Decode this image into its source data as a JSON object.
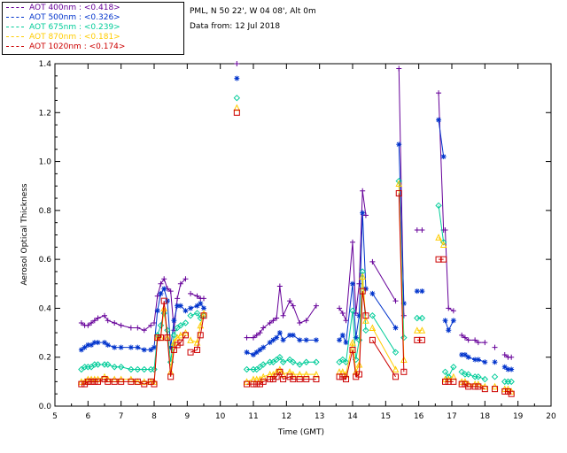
{
  "header": {
    "station": "PML, N 50 22', W 04 08', Alt 0m",
    "date": "Data from: 12 Jul 2018"
  },
  "chart_data": {
    "type": "scatter",
    "title": "",
    "xlabel": "Time (GMT)",
    "ylabel": "Aerosol Optical Thickness",
    "xlim": [
      5,
      20
    ],
    "ylim": [
      0,
      1.4
    ],
    "xticks": [
      5,
      6,
      7,
      8,
      9,
      10,
      11,
      12,
      13,
      14,
      15,
      16,
      17,
      18,
      19,
      20
    ],
    "yticks": [
      0.0,
      0.2,
      0.4,
      0.6,
      0.8,
      1.0,
      1.2,
      1.4
    ],
    "xtick_labels": [
      "5",
      "6",
      "7",
      "8",
      "9",
      "10",
      "11",
      "12",
      "13",
      "14",
      "15",
      "16",
      "17",
      "18",
      "19",
      "20"
    ],
    "ytick_labels": [
      "0.0",
      "0.2",
      "0.4",
      "0.6",
      "0.8",
      "1.0",
      "1.2",
      "1.4"
    ],
    "legend_position": "top-left",
    "segments": [
      [
        5.8,
        7.9
      ],
      [
        8.0,
        8.95
      ],
      [
        9.1,
        9.5
      ],
      [
        10.8,
        12.9
      ],
      [
        13.6,
        14.4
      ],
      [
        14.6,
        15.3
      ],
      [
        15.4,
        15.55
      ],
      [
        15.95,
        16.1
      ],
      [
        16.6,
        16.75
      ],
      [
        16.8,
        17.05
      ],
      [
        17.3,
        18.0
      ],
      [
        18.6,
        18.8
      ]
    ],
    "x": [
      5.8,
      5.9,
      6.0,
      6.1,
      6.2,
      6.3,
      6.5,
      6.6,
      6.8,
      7.0,
      7.3,
      7.5,
      7.7,
      7.9,
      8.0,
      8.1,
      8.2,
      8.3,
      8.4,
      8.5,
      8.6,
      8.7,
      8.8,
      8.95,
      9.1,
      9.3,
      9.4,
      9.5,
      10.5,
      10.8,
      11.0,
      11.1,
      11.2,
      11.3,
      11.5,
      11.6,
      11.7,
      11.8,
      11.9,
      12.1,
      12.2,
      12.4,
      12.6,
      12.9,
      13.6,
      13.7,
      13.8,
      14.0,
      14.1,
      14.2,
      14.3,
      14.4,
      14.6,
      15.3,
      15.4,
      15.55,
      15.95,
      16.1,
      16.6,
      16.75,
      16.8,
      16.9,
      17.05,
      17.3,
      17.4,
      17.5,
      17.7,
      17.8,
      18.0,
      18.3,
      18.6,
      18.7,
      18.8
    ],
    "series": [
      {
        "name": "AOT  400nm",
        "mean": "<0.418>",
        "color": "#660099",
        "marker": "plus",
        "values": [
          0.34,
          0.33,
          0.33,
          0.34,
          0.35,
          0.36,
          0.37,
          0.35,
          0.34,
          0.33,
          0.32,
          0.32,
          0.31,
          0.33,
          0.34,
          0.45,
          0.5,
          0.52,
          0.48,
          0.47,
          0.31,
          0.44,
          0.5,
          0.52,
          0.46,
          0.45,
          0.44,
          0.44,
          1.4,
          0.28,
          0.28,
          0.29,
          0.3,
          0.32,
          0.34,
          0.35,
          0.36,
          0.49,
          0.37,
          0.43,
          0.41,
          0.34,
          0.35,
          0.41,
          0.4,
          0.38,
          0.35,
          0.67,
          0.38,
          0.5,
          0.88,
          0.78,
          0.59,
          0.43,
          1.38,
          0.37,
          0.72,
          0.72,
          1.28,
          0.72,
          0.72,
          0.4,
          0.39,
          0.29,
          0.28,
          0.27,
          0.27,
          0.26,
          0.26,
          0.24,
          0.21,
          0.2,
          0.2
        ]
      },
      {
        "name": "AOT  500nm",
        "mean": "<0.326>",
        "color": "#0033cc",
        "marker": "star",
        "values": [
          0.23,
          0.24,
          0.25,
          0.25,
          0.26,
          0.26,
          0.26,
          0.25,
          0.24,
          0.24,
          0.24,
          0.24,
          0.23,
          0.23,
          0.24,
          0.39,
          0.46,
          0.48,
          0.43,
          0.24,
          0.35,
          0.41,
          0.41,
          0.39,
          0.4,
          0.41,
          0.42,
          0.4,
          1.34,
          0.22,
          0.21,
          0.22,
          0.23,
          0.24,
          0.26,
          0.27,
          0.28,
          0.3,
          0.27,
          0.29,
          0.29,
          0.27,
          0.27,
          0.27,
          0.27,
          0.29,
          0.26,
          0.5,
          0.28,
          0.37,
          0.79,
          0.48,
          0.46,
          0.32,
          1.07,
          0.42,
          0.47,
          0.47,
          1.17,
          1.02,
          0.35,
          0.31,
          0.35,
          0.21,
          0.21,
          0.2,
          0.19,
          0.19,
          0.18,
          0.18,
          0.16,
          0.15,
          0.15
        ]
      },
      {
        "name": "AOT  675nm",
        "mean": "<0.239>",
        "color": "#00cc99",
        "marker": "diamond",
        "values": [
          0.15,
          0.16,
          0.16,
          0.16,
          0.17,
          0.17,
          0.17,
          0.17,
          0.16,
          0.16,
          0.15,
          0.15,
          0.15,
          0.15,
          0.15,
          0.29,
          0.33,
          0.38,
          0.31,
          0.18,
          0.29,
          0.32,
          0.33,
          0.34,
          0.37,
          0.38,
          0.36,
          0.37,
          1.26,
          0.15,
          0.15,
          0.15,
          0.16,
          0.17,
          0.18,
          0.18,
          0.19,
          0.2,
          0.18,
          0.19,
          0.18,
          0.17,
          0.18,
          0.18,
          0.18,
          0.19,
          0.18,
          0.39,
          0.19,
          0.27,
          0.55,
          0.31,
          0.37,
          0.22,
          0.92,
          0.28,
          0.36,
          0.36,
          0.82,
          0.67,
          0.14,
          0.12,
          0.16,
          0.14,
          0.13,
          0.13,
          0.12,
          0.12,
          0.11,
          0.12,
          0.1,
          0.1,
          0.1
        ]
      },
      {
        "name": "AOT  870nm",
        "mean": "<0.181>",
        "color": "#ffcc00",
        "marker": "triangle",
        "values": [
          0.1,
          0.1,
          0.11,
          0.11,
          0.11,
          0.11,
          0.12,
          0.11,
          0.11,
          0.11,
          0.11,
          0.1,
          0.1,
          0.1,
          0.1,
          0.28,
          0.28,
          0.4,
          0.28,
          0.14,
          0.26,
          0.28,
          0.29,
          0.3,
          0.27,
          0.26,
          0.33,
          0.38,
          1.22,
          0.1,
          0.11,
          0.11,
          0.11,
          0.12,
          0.13,
          0.13,
          0.14,
          0.15,
          0.13,
          0.14,
          0.13,
          0.13,
          0.13,
          0.13,
          0.14,
          0.14,
          0.13,
          0.26,
          0.14,
          0.17,
          0.53,
          0.35,
          0.32,
          0.15,
          0.91,
          0.19,
          0.31,
          0.31,
          0.69,
          0.66,
          0.11,
          0.11,
          0.12,
          0.1,
          0.1,
          0.09,
          0.09,
          0.09,
          0.08,
          0.08,
          0.07,
          0.07,
          0.06
        ]
      },
      {
        "name": "AOT 1020nm",
        "mean": "<0.174>",
        "color": "#cc0000",
        "marker": "square",
        "values": [
          0.09,
          0.09,
          0.1,
          0.1,
          0.1,
          0.1,
          0.11,
          0.1,
          0.1,
          0.1,
          0.1,
          0.1,
          0.09,
          0.1,
          0.09,
          0.28,
          0.28,
          0.43,
          0.28,
          0.12,
          0.23,
          0.25,
          0.26,
          0.29,
          0.22,
          0.23,
          0.29,
          0.37,
          1.2,
          0.09,
          0.09,
          0.09,
          0.09,
          0.1,
          0.11,
          0.11,
          0.12,
          0.14,
          0.11,
          0.12,
          0.11,
          0.11,
          0.11,
          0.11,
          0.12,
          0.12,
          0.11,
          0.23,
          0.12,
          0.13,
          0.47,
          0.37,
          0.27,
          0.12,
          0.87,
          0.14,
          0.27,
          0.27,
          0.6,
          0.6,
          0.1,
          0.1,
          0.1,
          0.09,
          0.09,
          0.08,
          0.08,
          0.08,
          0.07,
          0.07,
          0.06,
          0.06,
          0.05
        ]
      }
    ]
  }
}
